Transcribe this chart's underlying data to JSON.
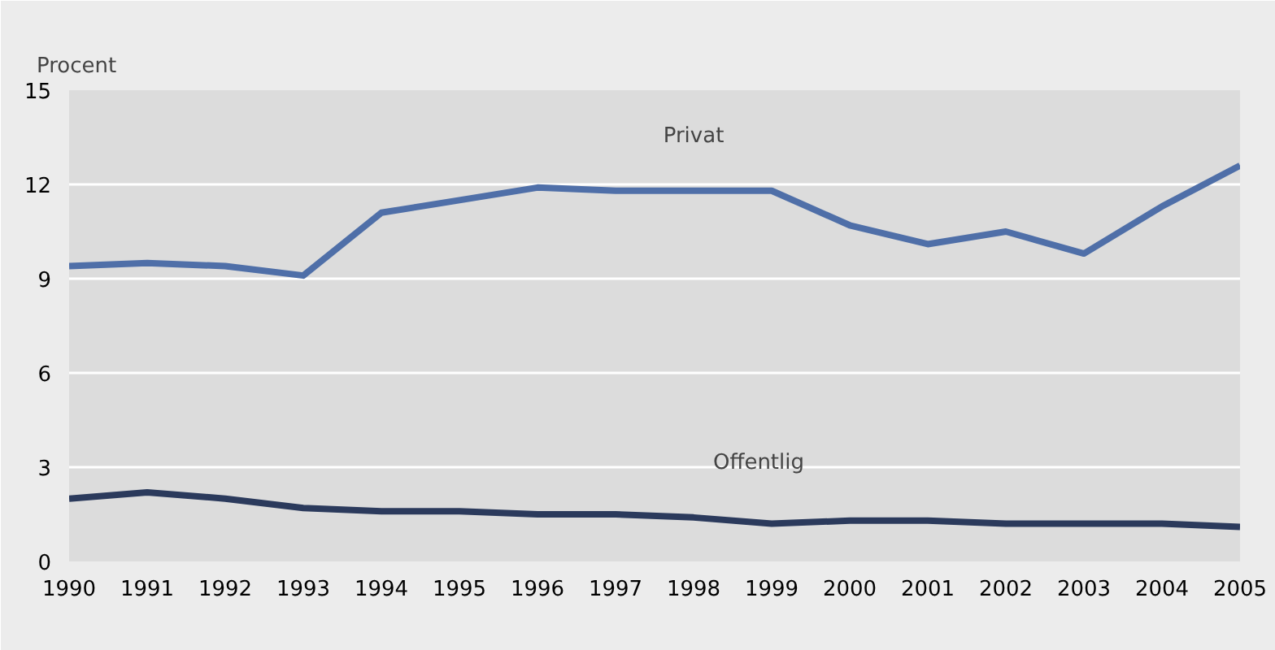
{
  "chart_data": {
    "type": "line",
    "ylabel": "Procent",
    "x": [
      1990,
      1991,
      1992,
      1993,
      1994,
      1995,
      1996,
      1997,
      1998,
      1999,
      2000,
      2001,
      2002,
      2003,
      2004,
      2005
    ],
    "series": [
      {
        "name": "Privat",
        "color": "#4f6fa8",
        "values": [
          9.4,
          9.5,
          9.4,
          9.1,
          11.1,
          11.5,
          11.9,
          11.8,
          11.8,
          11.8,
          10.7,
          10.1,
          10.5,
          9.8,
          11.3,
          12.6
        ]
      },
      {
        "name": "Offentlig",
        "color": "#2b3a5c",
        "values": [
          2.0,
          2.2,
          2.0,
          1.7,
          1.6,
          1.6,
          1.5,
          1.5,
          1.4,
          1.2,
          1.3,
          1.3,
          1.2,
          1.2,
          1.2,
          1.1
        ]
      }
    ],
    "xlim": [
      1990,
      2005
    ],
    "ylim": [
      0,
      15
    ],
    "xticks": [
      1990,
      1991,
      1992,
      1993,
      1994,
      1995,
      1996,
      1997,
      1998,
      1999,
      2000,
      2001,
      2002,
      2003,
      2004,
      2005
    ],
    "yticks": [
      0,
      3,
      6,
      9,
      12,
      15
    ],
    "grid": "y",
    "legend": false,
    "marker": "none",
    "line_style": "solid"
  }
}
